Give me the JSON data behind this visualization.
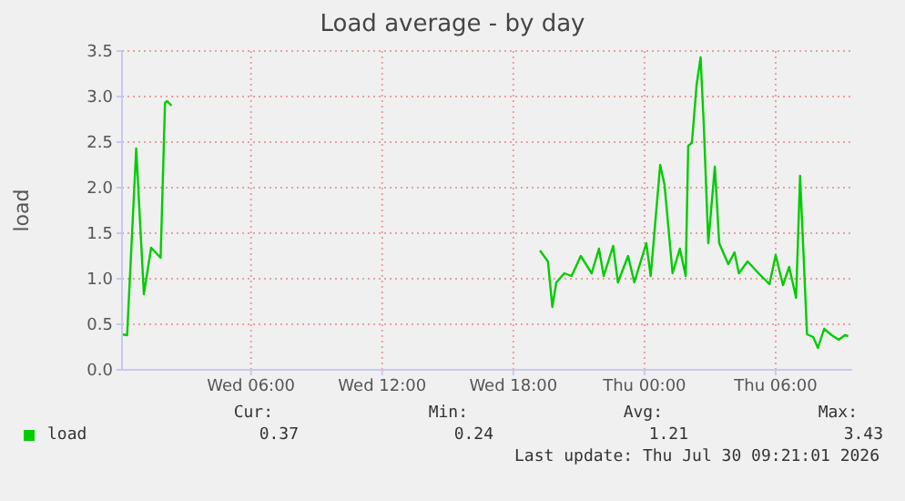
{
  "chart_data": {
    "type": "line",
    "title": "Load average - by day",
    "ylabel": "load",
    "x": [
      "2026-07-29T00:06",
      "2026-07-29T00:20",
      "2026-07-29T00:45",
      "2026-07-29T01:06",
      "2026-07-29T01:26",
      "2026-07-29T01:52",
      "2026-07-29T02:04",
      "2026-07-29T02:10",
      "2026-07-29T02:22",
      "2026-07-29T10:00",
      "2026-07-29T19:13",
      "2026-07-29T19:35",
      "2026-07-29T19:47",
      "2026-07-29T19:58",
      "2026-07-29T20:20",
      "2026-07-29T20:40",
      "2026-07-29T21:05",
      "2026-07-29T21:35",
      "2026-07-29T21:55",
      "2026-07-29T22:08",
      "2026-07-29T22:34",
      "2026-07-29T22:47",
      "2026-07-29T23:15",
      "2026-07-29T23:32",
      "2026-07-30T00:05",
      "2026-07-30T00:17",
      "2026-07-30T00:43",
      "2026-07-30T00:55",
      "2026-07-30T01:17",
      "2026-07-30T01:37",
      "2026-07-30T01:53",
      "2026-07-30T02:00",
      "2026-07-30T02:10",
      "2026-07-30T02:23",
      "2026-07-30T02:34",
      "2026-07-30T02:43",
      "2026-07-30T02:55",
      "2026-07-30T03:13",
      "2026-07-30T03:25",
      "2026-07-30T03:50",
      "2026-07-30T04:07",
      "2026-07-30T04:19",
      "2026-07-30T04:43",
      "2026-07-30T05:13",
      "2026-07-30T05:43",
      "2026-07-30T06:00",
      "2026-07-30T06:20",
      "2026-07-30T06:37",
      "2026-07-30T06:56",
      "2026-07-30T07:07",
      "2026-07-30T07:26",
      "2026-07-30T07:43",
      "2026-07-30T07:56",
      "2026-07-30T08:13",
      "2026-07-30T08:34",
      "2026-07-30T08:53",
      "2026-07-30T09:10",
      "2026-07-30T09:19"
    ],
    "series": [
      {
        "name": "load",
        "color": "#00cc00",
        "values": [
          0.39,
          0.38,
          2.43,
          0.83,
          1.34,
          1.23,
          2.93,
          2.95,
          2.9,
          null,
          1.31,
          1.19,
          0.69,
          0.96,
          1.06,
          1.03,
          1.25,
          1.06,
          1.33,
          1.03,
          1.36,
          0.96,
          1.25,
          0.96,
          1.39,
          1.03,
          2.25,
          2.03,
          1.06,
          1.33,
          1.03,
          2.46,
          2.49,
          3.13,
          3.43,
          2.66,
          1.39,
          2.23,
          1.39,
          1.16,
          1.29,
          1.06,
          1.19,
          1.06,
          0.94,
          1.26,
          0.93,
          1.13,
          0.79,
          2.13,
          0.39,
          0.36,
          0.24,
          0.45,
          0.38,
          0.33,
          0.38,
          0.37
        ]
      }
    ],
    "xlim": [
      "2026-07-29T00:06",
      "2026-07-30T09:30"
    ],
    "xticks": [
      {
        "value": "2026-07-29T06:00",
        "label": "Wed 06:00"
      },
      {
        "value": "2026-07-29T12:00",
        "label": "Wed 12:00"
      },
      {
        "value": "2026-07-29T18:00",
        "label": "Wed 18:00"
      },
      {
        "value": "2026-07-30T00:00",
        "label": "Thu 00:00"
      },
      {
        "value": "2026-07-30T06:00",
        "label": "Thu 06:00"
      }
    ],
    "ylim": [
      0,
      3.5
    ],
    "yticks": [
      {
        "value": 0,
        "label": "0.0"
      },
      0.5,
      {
        "value": 1,
        "label": "1.0"
      },
      1.5,
      {
        "value": 2,
        "label": "2.0"
      },
      2.5,
      {
        "value": 3,
        "label": "3.0"
      },
      3.5
    ],
    "grid": true,
    "legend": "bottom",
    "marker": "none",
    "line_style": "solid",
    "annotations": [
      "Cur:",
      "Min:",
      "Avg:",
      "Max:",
      "0.37",
      "0.24",
      "1.21",
      "3.43",
      "Last update: Thu Jul 30 09:21:01 2026"
    ]
  }
}
